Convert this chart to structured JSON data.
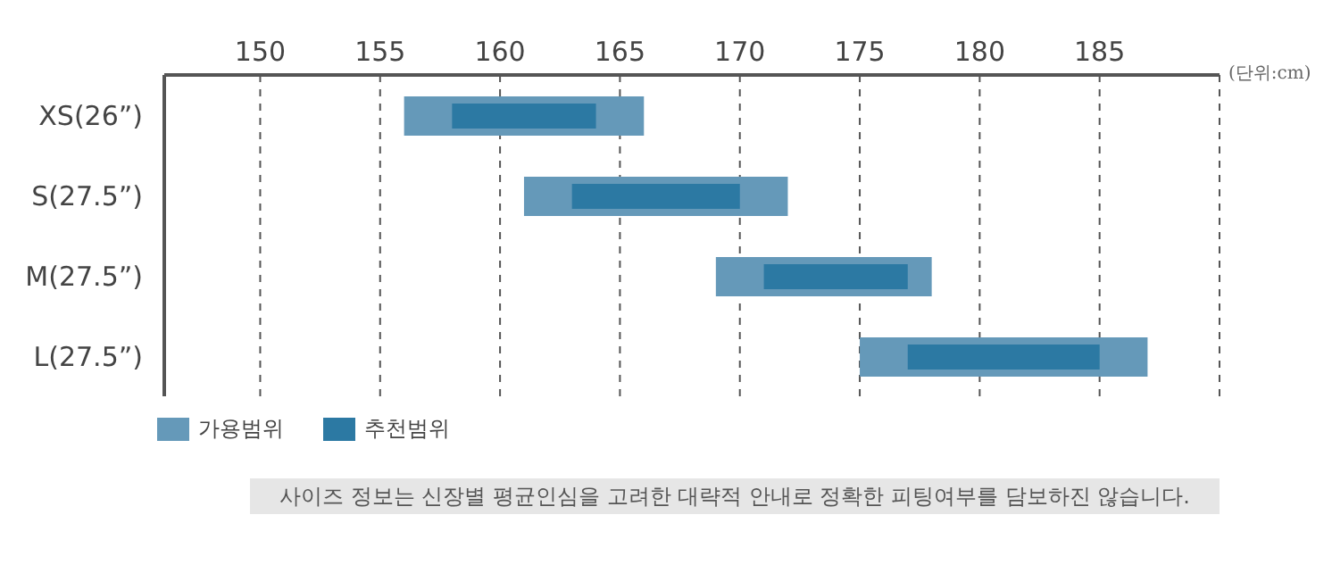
{
  "chart_data": {
    "type": "bar",
    "orientation": "horizontal",
    "xlabel": "(단위:cm)",
    "categories": [
      "XS(26”)",
      "S(27.5”)",
      "M(27.5”)",
      "L(27.5”)"
    ],
    "series": [
      {
        "name": "가용범위",
        "color": "#6599b9",
        "base": [
          156,
          161,
          169,
          175
        ],
        "values": [
          10,
          11,
          9,
          12
        ]
      },
      {
        "name": "추천범위",
        "color": "#2c79a3",
        "base": [
          158,
          163,
          171,
          177
        ],
        "values": [
          6,
          7,
          6,
          8
        ]
      }
    ],
    "xlim": [
      146,
      190
    ],
    "xticks": [
      150,
      155,
      160,
      165,
      170,
      175,
      180,
      185
    ],
    "grid": "x",
    "legend": "bottom left",
    "annotations": [
      "사이즈 정보는 신장별 평균인심을 고려한 대략적 안내로 정확한 피팅여부를 담보하진 않습니다."
    ]
  }
}
